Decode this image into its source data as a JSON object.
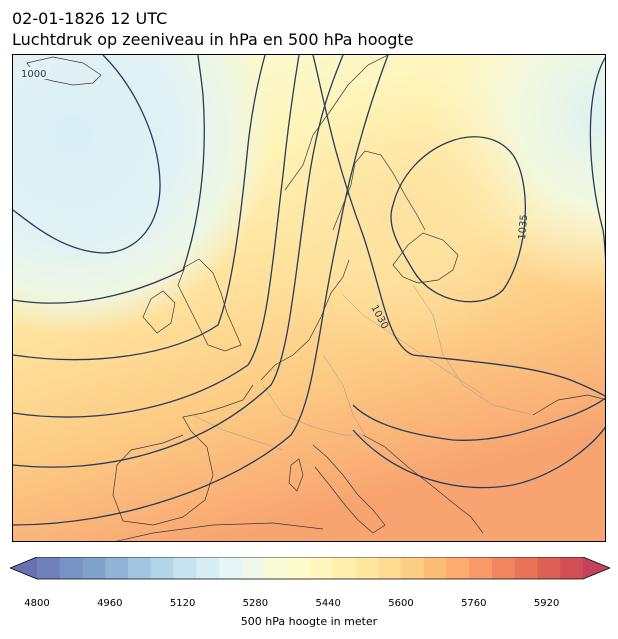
{
  "header": {
    "date_line": "02-01-1826 12 UTC",
    "subtitle": "Luchtdruk op zeeniveau in hPa en 500 hPa hoogte"
  },
  "map": {
    "isobar_labels": [
      "1000",
      "1030",
      "1035"
    ],
    "contour_color": "#263c5a",
    "coast_color": "#3a3a3a"
  },
  "colorbar": {
    "label": "500 hPa hoogte in meter",
    "range": [
      4800,
      6000
    ],
    "step": 40,
    "ticks": [
      "4800",
      "4960",
      "5120",
      "5280",
      "5440",
      "5600",
      "5760",
      "5920"
    ],
    "colors": [
      "#6a6fb1",
      "#6f80bb",
      "#7792c4",
      "#80a3cd",
      "#8fb4d6",
      "#a1c6df",
      "#b4d5e8",
      "#c7e3ef",
      "#d8eef5",
      "#e6f5f7",
      "#f0f9e9",
      "#f7fcd7",
      "#fefccb",
      "#fff7bd",
      "#fff0ad",
      "#ffe7a0",
      "#ffdb92",
      "#fecd85",
      "#fdbd79",
      "#fbac6e",
      "#f79a66",
      "#f1865e",
      "#e97357",
      "#de6054",
      "#d14f55",
      "#c3415a"
    ]
  }
}
